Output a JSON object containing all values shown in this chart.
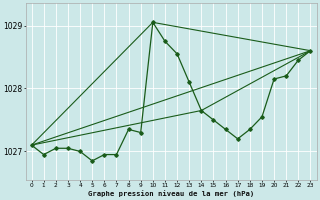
{
  "title": "Graphe pression niveau de la mer (hPa)",
  "bg_color": "#cce8e8",
  "grid_color": "#ffffff",
  "line_color": "#1a5c1a",
  "xlim": [
    -0.5,
    23.5
  ],
  "ylim": [
    1026.55,
    1029.35
  ],
  "yticks": [
    1027,
    1028,
    1029
  ],
  "xticks": [
    0,
    1,
    2,
    3,
    4,
    5,
    6,
    7,
    8,
    9,
    10,
    11,
    12,
    13,
    14,
    15,
    16,
    17,
    18,
    19,
    20,
    21,
    22,
    23
  ],
  "series1_x": [
    0,
    1,
    2,
    3,
    4,
    5,
    6,
    7,
    8,
    9,
    10,
    11,
    12,
    13,
    14,
    15,
    16,
    17,
    18,
    19,
    20,
    21,
    22,
    23
  ],
  "series1_y": [
    1027.1,
    1026.95,
    1027.05,
    1027.05,
    1027.0,
    1026.85,
    1026.95,
    1026.95,
    1027.35,
    1027.3,
    1029.05,
    1028.75,
    1028.55,
    1028.1,
    1027.65,
    1027.5,
    1027.35,
    1027.2,
    1027.35,
    1027.55,
    1028.15,
    1028.2,
    1028.45,
    1028.6
  ],
  "trend1_x": [
    0,
    23
  ],
  "trend1_y": [
    1027.1,
    1028.6
  ],
  "trend2_x": [
    0,
    10,
    23
  ],
  "trend2_y": [
    1027.1,
    1029.05,
    1028.6
  ],
  "trend3_x": [
    0,
    14,
    23
  ],
  "trend3_y": [
    1027.1,
    1027.65,
    1028.6
  ]
}
